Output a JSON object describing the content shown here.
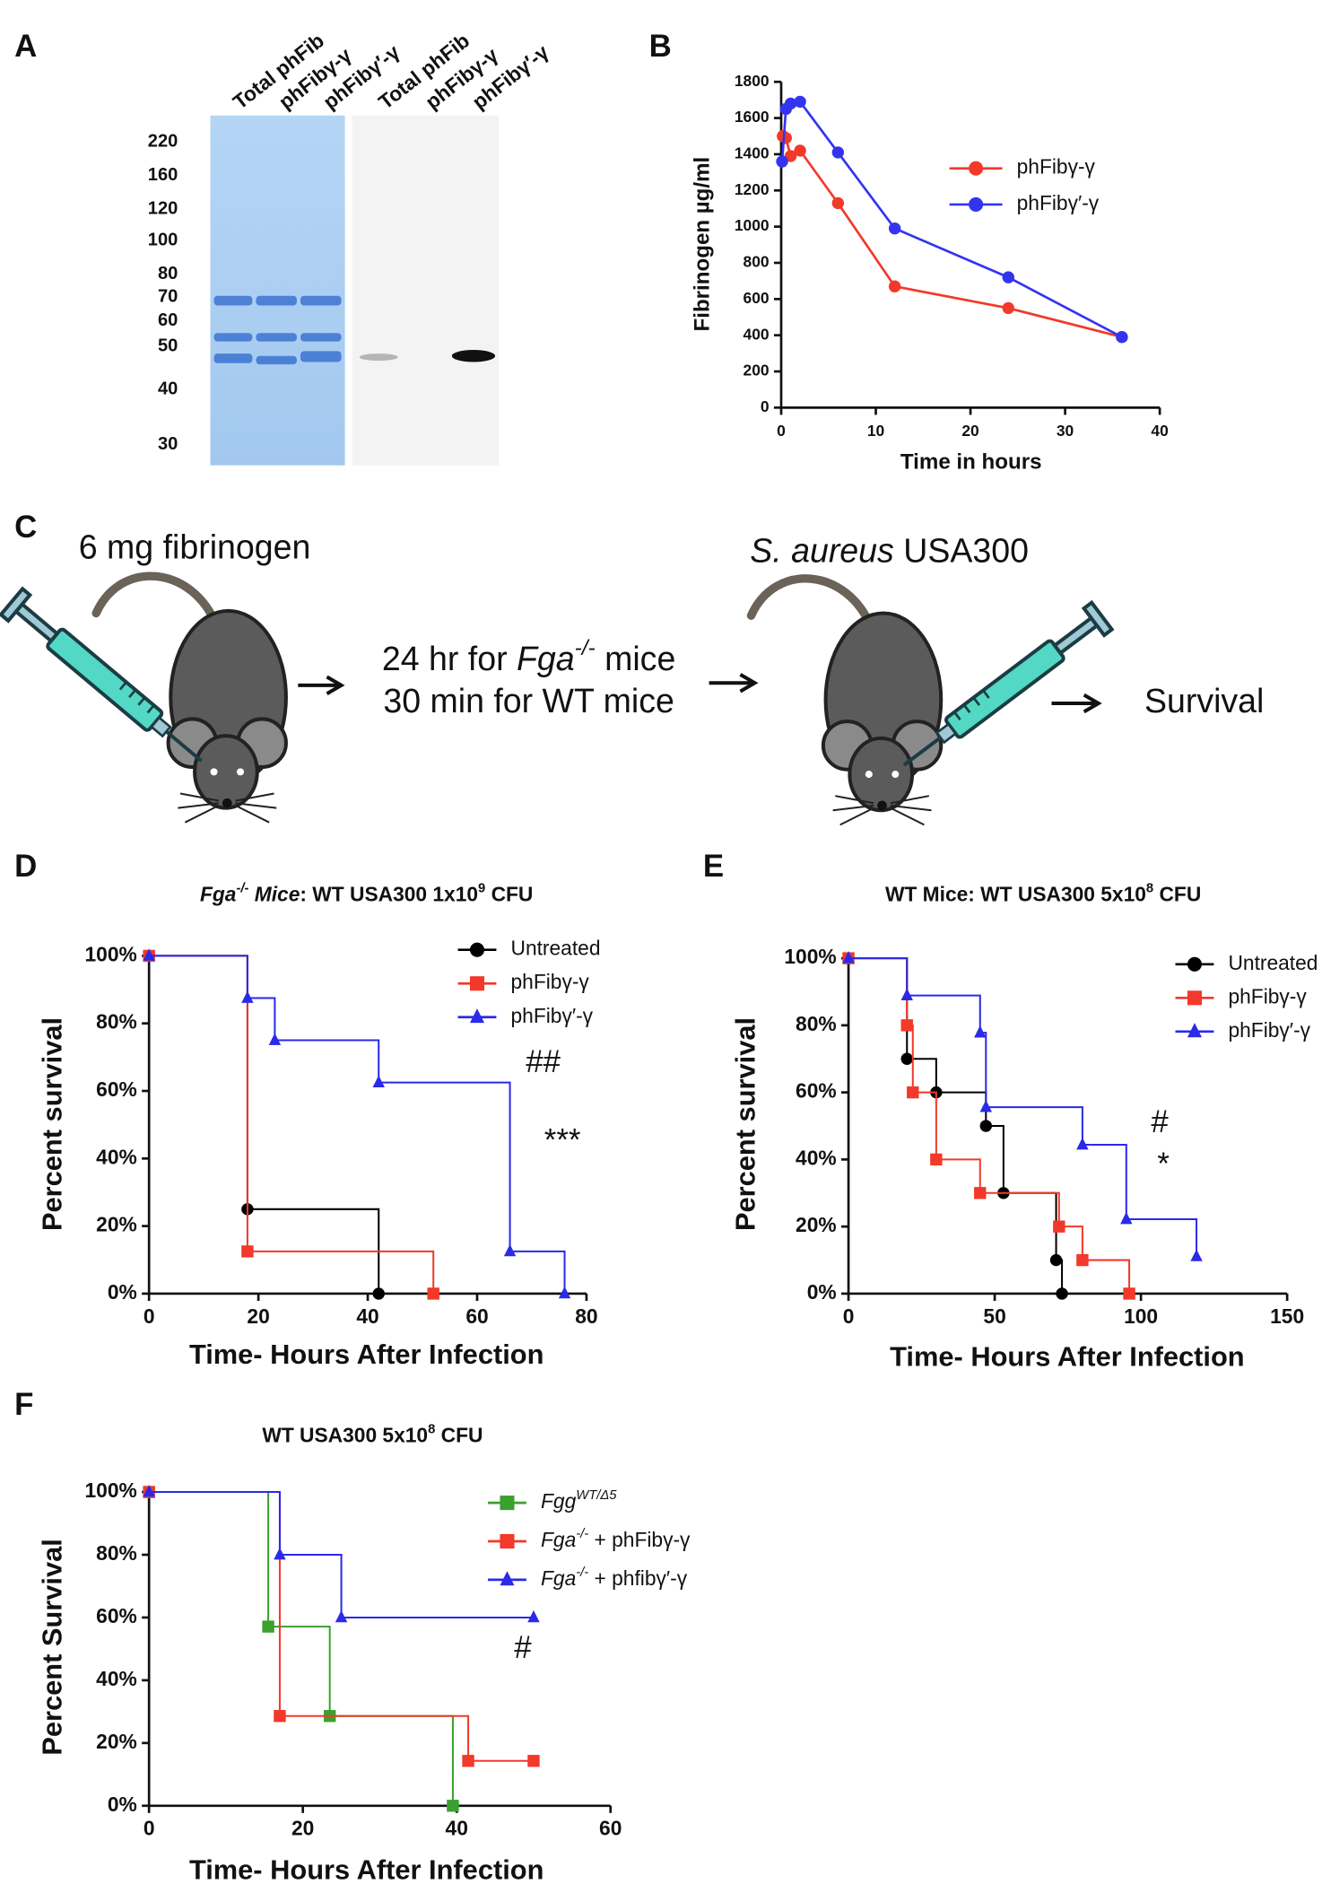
{
  "panel_labels": [
    "A",
    "B",
    "C",
    "D",
    "E",
    "F"
  ],
  "gel": {
    "lanes": [
      "Total phFib",
      "phFibγ-γ",
      "phFibγ′-γ",
      "Total phFib",
      "phFibγ-γ",
      "phFibγ′-γ"
    ],
    "markers": [
      220,
      160,
      120,
      100,
      80,
      70,
      60,
      50,
      40,
      30
    ]
  },
  "diagram": {
    "dose": "6 mg fibrinogen",
    "wait_fga": [
      {
        "text": "24 hr for "
      },
      {
        "text": "Fga",
        "italic": true
      },
      {
        "text": "-/-",
        "italic": true,
        "sup": true
      },
      {
        "text": " mice"
      }
    ],
    "wait_wt": "30 min for WT mice",
    "infection": [
      {
        "text": "S. aureus",
        "italic": true
      },
      {
        "text": " USA300"
      }
    ],
    "outcome": "Survival"
  },
  "chart_data": [
    {
      "type": "line",
      "x_label": "Time in hours",
      "y_label": "Fibrinogen µg/ml",
      "xlim": [
        0,
        40
      ],
      "xticks": [
        0,
        10,
        20,
        30,
        40
      ],
      "ylim": [
        0,
        1800
      ],
      "yticks": [
        0,
        200,
        400,
        600,
        800,
        1000,
        1200,
        1400,
        1600,
        1800
      ],
      "legend": "right",
      "series": [
        {
          "name": "phFibγ-γ",
          "color": "#f2392a",
          "marker": "circle",
          "x": [
            0.17,
            0.5,
            1,
            2,
            6,
            12,
            24,
            36
          ],
          "values": [
            1500,
            1490,
            1390,
            1420,
            1130,
            670,
            550,
            390
          ]
        },
        {
          "name": "phFibγ′-γ",
          "color": "#3434f0",
          "marker": "circle",
          "x": [
            0.1,
            0.5,
            1,
            2,
            6,
            12,
            24,
            36
          ],
          "values": [
            1360,
            1650,
            1680,
            1690,
            1410,
            990,
            720,
            390
          ]
        }
      ]
    },
    {
      "type": "survival",
      "title": [
        {
          "text": "Fga",
          "italic": true
        },
        {
          "text": "-/-",
          "italic": true,
          "sup": true
        },
        {
          "text": " Mice",
          "italic": true
        },
        {
          "text": ": WT USA300 1x10"
        },
        {
          "text": "9",
          "sup": true
        },
        {
          "text": " CFU"
        }
      ],
      "x_label": "Time- Hours After Infection",
      "y_label": "Percent survival",
      "xlim": [
        0,
        80
      ],
      "xticks": [
        0,
        20,
        40,
        60,
        80
      ],
      "ylim": [
        0,
        100
      ],
      "yticks": [
        {
          "value": 0,
          "label": "0%"
        },
        {
          "value": 20,
          "label": "20%"
        },
        {
          "value": 40,
          "label": "40%"
        },
        {
          "value": 60,
          "label": "60%"
        },
        {
          "value": 80,
          "label": "80%"
        },
        {
          "value": 100,
          "label": "100%"
        }
      ],
      "legend": "upper right",
      "annotations": [
        "##",
        "***"
      ],
      "series": [
        {
          "name": "Untreated",
          "color": "#000000",
          "marker": "circle",
          "x": [
            0,
            18,
            42
          ],
          "values": [
            100,
            25,
            0
          ]
        },
        {
          "name": "phFibγ-γ",
          "color": "#f2392a",
          "marker": "square",
          "x": [
            0,
            18,
            52
          ],
          "values": [
            100,
            12.5,
            0
          ]
        },
        {
          "name": "phFibγ′-γ",
          "color": "#2a2ae8",
          "marker": "triangle",
          "x": [
            0,
            18,
            23,
            42,
            66,
            76
          ],
          "values": [
            100,
            87.5,
            75,
            62.5,
            12.5,
            0
          ]
        }
      ]
    },
    {
      "type": "survival",
      "title": [
        {
          "text": "WT Mice: WT USA300 5x10"
        },
        {
          "text": "8",
          "sup": true
        },
        {
          "text": " CFU"
        }
      ],
      "x_label": "Time- Hours After Infection",
      "y_label": "Percent survival",
      "xlim": [
        0,
        150
      ],
      "xticks": [
        0,
        50,
        100,
        150
      ],
      "ylim": [
        0,
        100
      ],
      "yticks": [
        {
          "value": 0,
          "label": "0%"
        },
        {
          "value": 20,
          "label": "20%"
        },
        {
          "value": 40,
          "label": "40%"
        },
        {
          "value": 60,
          "label": "60%"
        },
        {
          "value": 80,
          "label": "80%"
        },
        {
          "value": 100,
          "label": "100%"
        }
      ],
      "legend": "upper right",
      "annotations": [
        "#",
        "*"
      ],
      "series": [
        {
          "name": "Untreated",
          "color": "#000000",
          "marker": "circle",
          "x": [
            0,
            20,
            30,
            47,
            53,
            71,
            73
          ],
          "values": [
            100,
            70,
            60,
            50,
            30,
            10,
            0
          ]
        },
        {
          "name": "phFibγ-γ",
          "color": "#f2392a",
          "marker": "square",
          "x": [
            0,
            20,
            22,
            30,
            45,
            72,
            80,
            96
          ],
          "values": [
            100,
            80,
            60,
            40,
            30,
            20,
            10,
            0
          ]
        },
        {
          "name": "phFibγ′-γ",
          "color": "#2a2ae8",
          "marker": "triangle",
          "x": [
            0,
            20,
            45,
            47,
            80,
            95,
            119
          ],
          "values": [
            100,
            88.9,
            77.8,
            55.6,
            44.4,
            22.2,
            11.1
          ]
        }
      ]
    },
    {
      "type": "survival",
      "title": [
        {
          "text": "WT USA300 5x10"
        },
        {
          "text": "8",
          "sup": true
        },
        {
          "text": " CFU"
        }
      ],
      "x_label": "Time- Hours After Infection",
      "y_label": "Percent Survival",
      "xlim": [
        0,
        60
      ],
      "xticks": [
        0,
        20,
        40,
        60
      ],
      "ylim": [
        0,
        100
      ],
      "yticks": [
        {
          "value": 0,
          "label": "0%"
        },
        {
          "value": 20,
          "label": "20%"
        },
        {
          "value": 40,
          "label": "40%"
        },
        {
          "value": 60,
          "label": "60%"
        },
        {
          "value": 80,
          "label": "80%"
        },
        {
          "value": 100,
          "label": "100%"
        }
      ],
      "legend": "upper right",
      "annotations": [
        "#"
      ],
      "series": [
        {
          "name": [
            {
              "text": "Fgg",
              "italic": true
            },
            {
              "text": "WT/Δ5",
              "italic": true,
              "sup": true
            }
          ],
          "color": "#3aa02e",
          "marker": "square",
          "x": [
            0,
            15.5,
            23.5,
            39.5
          ],
          "values": [
            100,
            57.1,
            28.6,
            0
          ]
        },
        {
          "name": [
            {
              "text": "Fga",
              "italic": true
            },
            {
              "text": "-/-",
              "italic": true,
              "sup": true
            },
            {
              "text": " + phFibγ-γ"
            }
          ],
          "color": "#f2392a",
          "marker": "square",
          "x": [
            0,
            17,
            41.5,
            50
          ],
          "values": [
            100,
            28.6,
            14.3,
            14.3
          ]
        },
        {
          "name": [
            {
              "text": "Fga",
              "italic": true
            },
            {
              "text": "-/-",
              "italic": true,
              "sup": true
            },
            {
              "text": " + phfibγ′-γ"
            }
          ],
          "color": "#2a2ae8",
          "marker": "triangle",
          "x": [
            0,
            17,
            25,
            50
          ],
          "values": [
            100,
            80,
            60,
            60
          ]
        }
      ]
    }
  ]
}
